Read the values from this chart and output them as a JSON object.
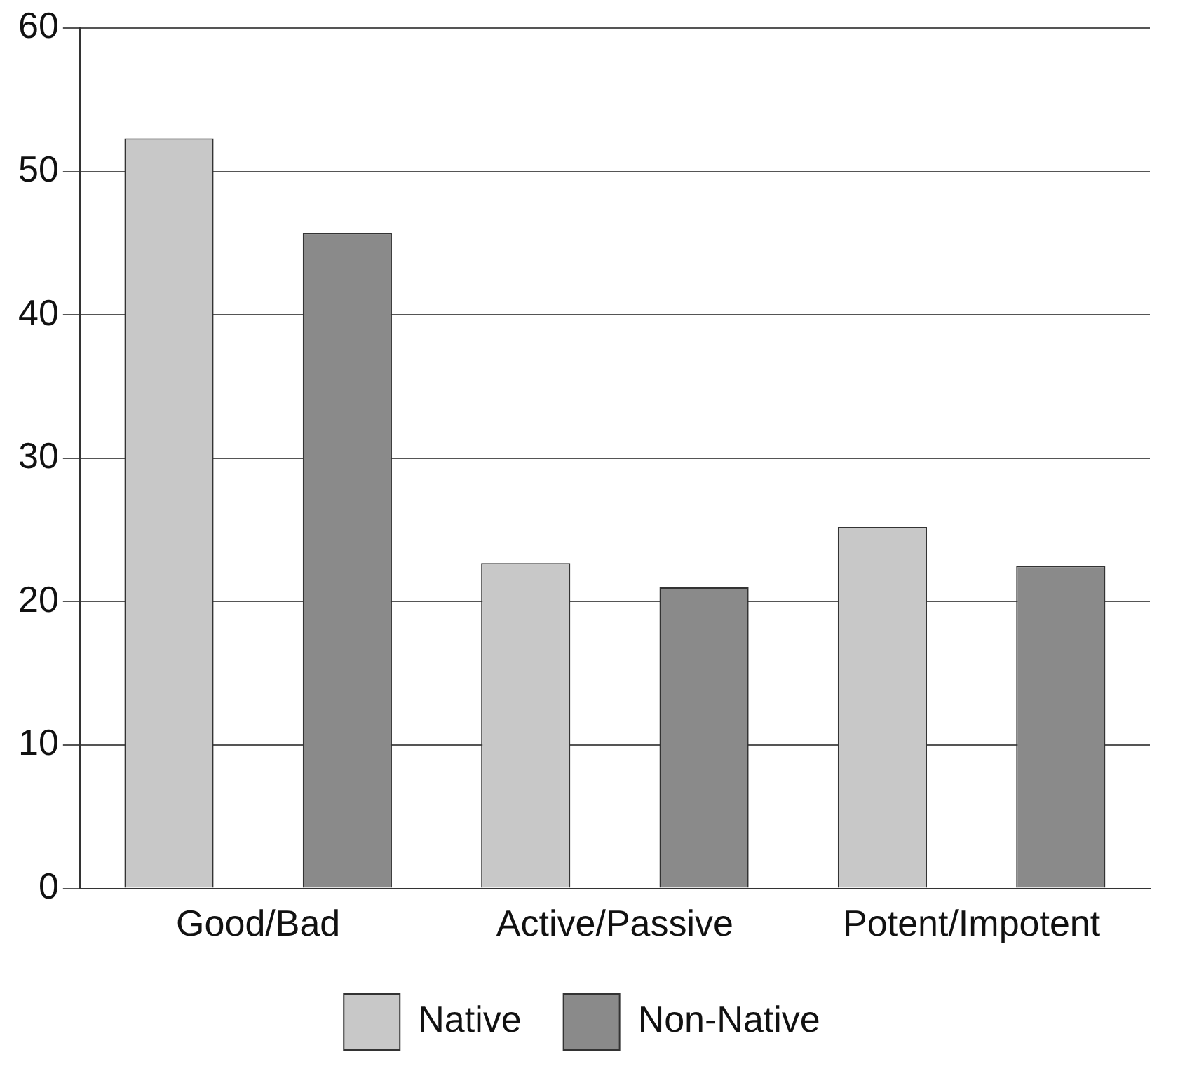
{
  "chart_data": {
    "type": "bar",
    "categories": [
      "Good/Bad",
      "Active/Passive",
      "Potent/Impotent"
    ],
    "series": [
      {
        "name": "Native",
        "color": "#c8c8c8",
        "values": [
          52.3,
          22.7,
          25.2
        ]
      },
      {
        "name": "Non-Native",
        "color": "#8a8a8a",
        "values": [
          45.7,
          21.0,
          22.5
        ]
      }
    ],
    "ylim": [
      0,
      60
    ],
    "yticks": [
      0,
      10,
      20,
      30,
      40,
      50,
      60
    ],
    "grid": "y",
    "legend": "bottom"
  }
}
